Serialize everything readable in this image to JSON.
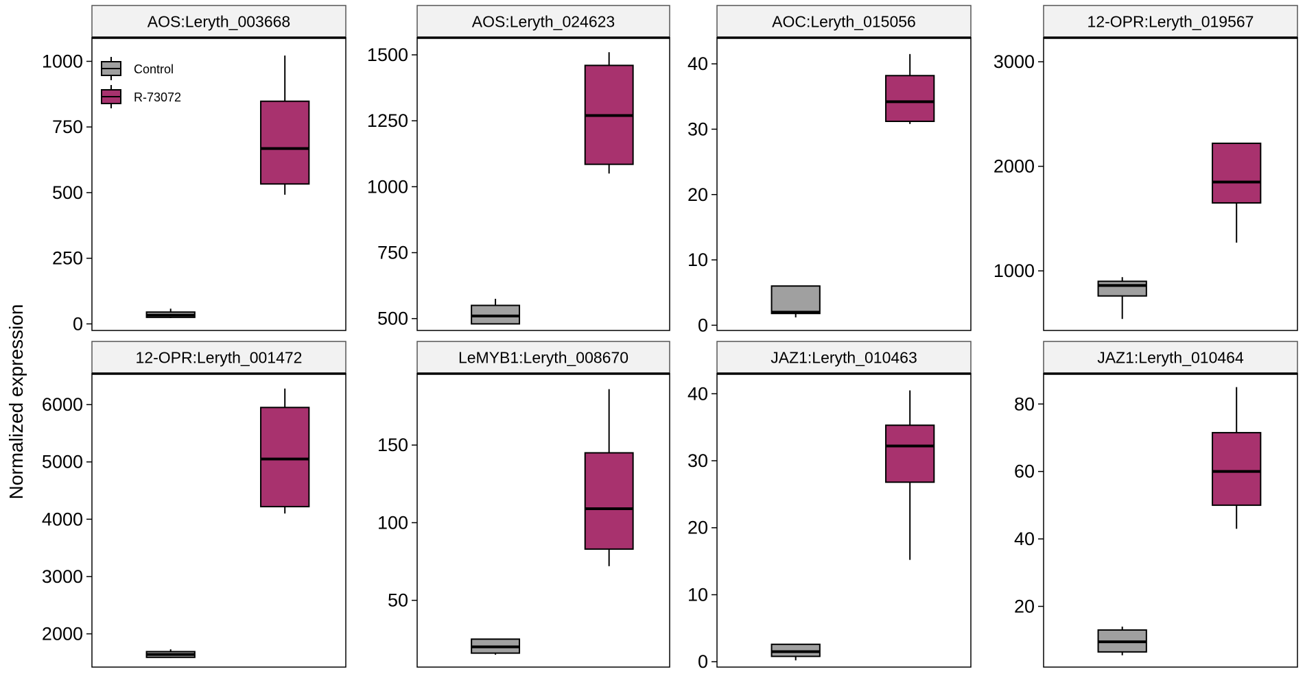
{
  "chart_data": {
    "type": "boxplot",
    "ylabel": "Normalized expression",
    "legend": {
      "placement": "top-left inside first panel",
      "entries": [
        {
          "label": "Control",
          "color": "#A0A0A0"
        },
        {
          "label": "R-73072",
          "color": "#A8326E"
        }
      ]
    },
    "groups": [
      "Control",
      "R-73072"
    ],
    "panels": [
      {
        "title": "AOS:Leryth_003668",
        "ylim": [
          -25,
          1090
        ],
        "ticks": [
          0,
          250,
          500,
          750,
          1000
        ],
        "boxes": [
          {
            "group": "Control",
            "min": 22,
            "q1": 25,
            "median": 33,
            "q3": 45,
            "max": 58
          },
          {
            "group": "R-73072",
            "min": 492,
            "q1": 533,
            "median": 668,
            "q3": 848,
            "max": 1022
          }
        ]
      },
      {
        "title": "AOS:Leryth_024623",
        "ylim": [
          455,
          1565
        ],
        "ticks": [
          500,
          750,
          1000,
          1250,
          1500
        ],
        "boxes": [
          {
            "group": "Control",
            "min": 480,
            "q1": 480,
            "median": 510,
            "q3": 550,
            "max": 575
          },
          {
            "group": "R-73072",
            "min": 1050,
            "q1": 1085,
            "median": 1270,
            "q3": 1460,
            "max": 1510
          }
        ]
      },
      {
        "title": "AOC:Leryth_015056",
        "ylim": [
          -0.8,
          44
        ],
        "ticks": [
          0,
          10,
          20,
          30,
          40
        ],
        "boxes": [
          {
            "group": "Control",
            "min": 1.2,
            "q1": 1.8,
            "median": 2.0,
            "q3": 6.0,
            "max": 6.0
          },
          {
            "group": "R-73072",
            "min": 30.8,
            "q1": 31.2,
            "median": 34.2,
            "q3": 38.2,
            "max": 41.5
          }
        ]
      },
      {
        "title": "12-OPR:Leryth_019567",
        "ylim": [
          430,
          3230
        ],
        "ticks": [
          1000,
          2000,
          3000
        ],
        "boxes": [
          {
            "group": "Control",
            "min": 540,
            "q1": 760,
            "median": 860,
            "q3": 900,
            "max": 940
          },
          {
            "group": "R-73072",
            "min": 1270,
            "q1": 1650,
            "median": 1850,
            "q3": 2220,
            "max": 2220
          }
        ]
      },
      {
        "title": "12-OPR:Leryth_001472",
        "ylim": [
          1420,
          6540
        ],
        "ticks": [
          2000,
          3000,
          4000,
          5000,
          6000
        ],
        "boxes": [
          {
            "group": "Control",
            "min": 1580,
            "q1": 1590,
            "median": 1640,
            "q3": 1690,
            "max": 1730
          },
          {
            "group": "R-73072",
            "min": 4100,
            "q1": 4220,
            "median": 5050,
            "q3": 5950,
            "max": 6280
          }
        ]
      },
      {
        "title": "LeMYB1:Leryth_008670",
        "ylim": [
          7,
          196
        ],
        "ticks": [
          50,
          100,
          150
        ],
        "boxes": [
          {
            "group": "Control",
            "min": 15,
            "q1": 16,
            "median": 20,
            "q3": 25,
            "max": 25
          },
          {
            "group": "R-73072",
            "min": 72,
            "q1": 83,
            "median": 109,
            "q3": 145,
            "max": 186
          }
        ]
      },
      {
        "title": "JAZ1:Leryth_010463",
        "ylim": [
          -0.8,
          43
        ],
        "ticks": [
          0,
          10,
          20,
          30,
          40
        ],
        "boxes": [
          {
            "group": "Control",
            "min": 0.2,
            "q1": 0.8,
            "median": 1.5,
            "q3": 2.6,
            "max": 2.6
          },
          {
            "group": "R-73072",
            "min": 15.2,
            "q1": 26.8,
            "median": 32.2,
            "q3": 35.3,
            "max": 40.5
          }
        ]
      },
      {
        "title": "JAZ1:Leryth_010464",
        "ylim": [
          2,
          89
        ],
        "ticks": [
          20,
          40,
          60,
          80
        ],
        "boxes": [
          {
            "group": "Control",
            "min": 5.5,
            "q1": 6.5,
            "median": 9.5,
            "q3": 13,
            "max": 14
          },
          {
            "group": "R-73072",
            "min": 43,
            "q1": 50,
            "median": 60,
            "q3": 71.5,
            "max": 85
          }
        ]
      }
    ]
  }
}
